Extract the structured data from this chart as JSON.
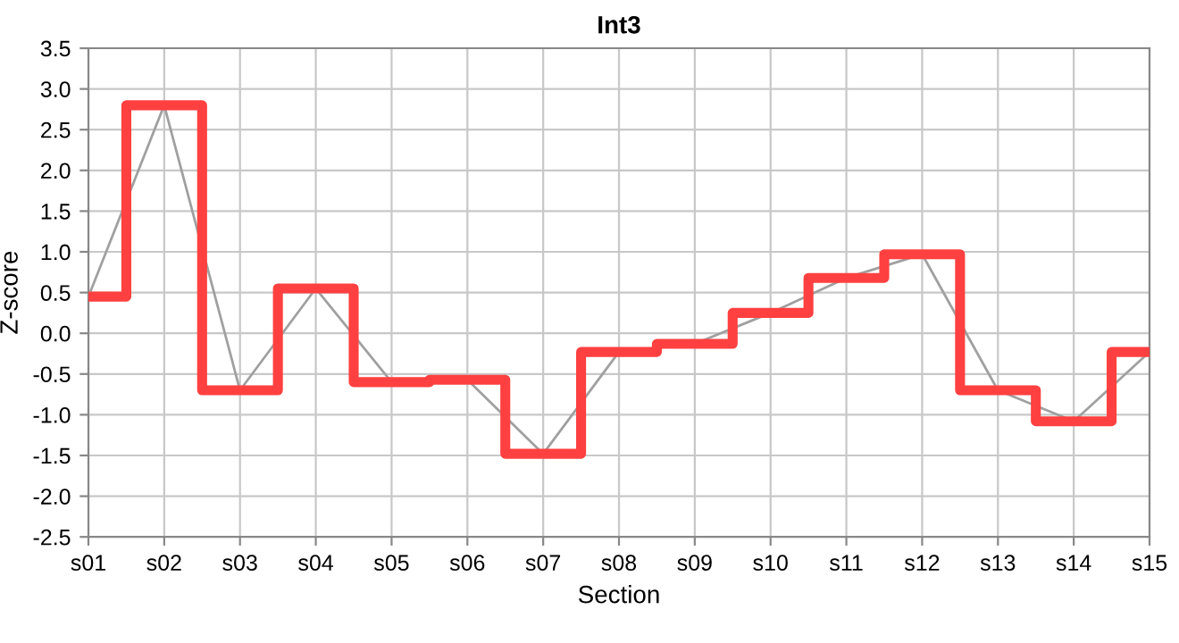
{
  "chart_data": {
    "type": "step",
    "title": "Int3",
    "xlabel": "Section",
    "ylabel": "Z-score",
    "categories": [
      "s01",
      "s02",
      "s03",
      "s04",
      "s05",
      "s06",
      "s07",
      "s08",
      "s09",
      "s10",
      "s11",
      "s12",
      "s13",
      "s14",
      "s15"
    ],
    "series": [
      {
        "type": "line",
        "color": "#a0a0a0",
        "values": [
          0.45,
          2.8,
          -0.7,
          0.55,
          -0.6,
          -0.57,
          -1.48,
          -0.23,
          -0.13,
          0.25,
          0.68,
          0.97,
          -0.7,
          -1.08,
          -0.23
        ]
      },
      {
        "color": "#ff4040",
        "values": [
          0.45,
          2.8,
          -0.7,
          0.55,
          -0.6,
          -0.57,
          -1.48,
          -0.23,
          -0.13,
          0.25,
          0.68,
          0.97,
          -0.7,
          -1.08,
          -0.23
        ]
      }
    ],
    "ylim": [
      -2.5,
      3.5
    ],
    "yticks": [
      {
        "value": -2.5,
        "label": "-2.5"
      },
      {
        "value": -2,
        "label": "-2.0"
      },
      {
        "value": -1.5,
        "label": "-1.5"
      },
      {
        "value": -1,
        "label": "-1.0"
      },
      {
        "value": -0.5,
        "label": "-0.5"
      },
      {
        "value": 0,
        "label": "0.0"
      },
      {
        "value": 0.5,
        "label": "0.5"
      },
      {
        "value": 1,
        "label": "1.0"
      },
      {
        "value": 1.5,
        "label": "1.5"
      },
      {
        "value": 2,
        "label": "2.0"
      },
      {
        "value": 2.5,
        "label": "2.5"
      },
      {
        "value": 3,
        "label": "3.0"
      },
      {
        "value": 3.5,
        "label": "3.5"
      }
    ],
    "grid": true
  }
}
